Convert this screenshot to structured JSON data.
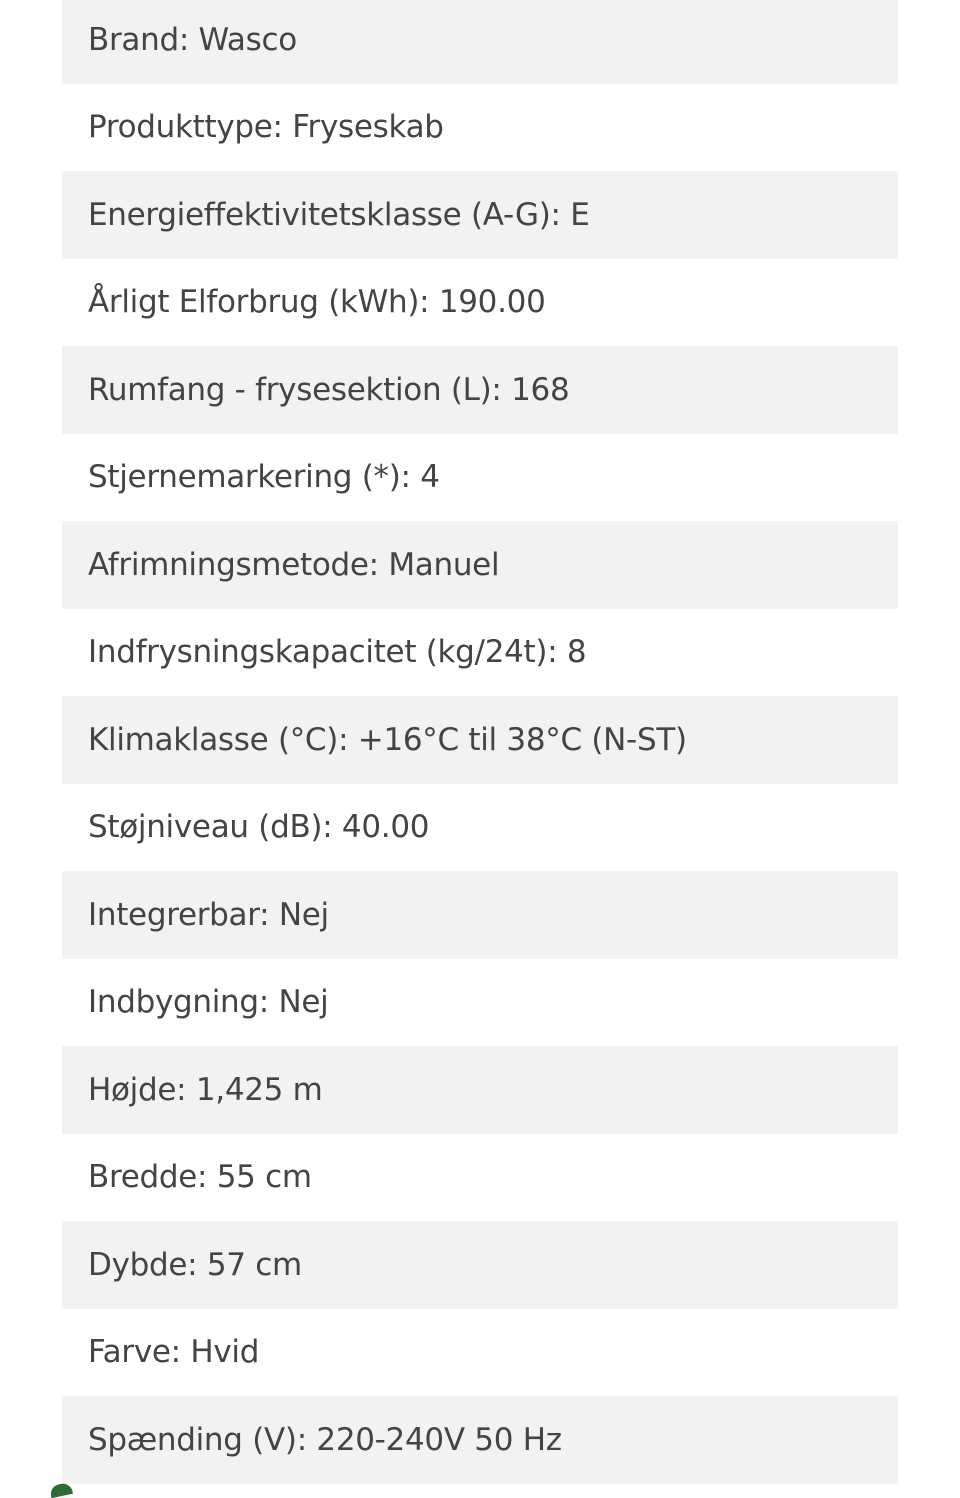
{
  "specs": [
    "Brand: Wasco",
    "Produkttype: Fryseskab",
    "Energieffektivitetsklasse (A-G): E",
    "Årligt Elforbrug (kWh): 190.00",
    "Rumfang - frysesektion (L): 168",
    "Stjernemarkering (*): 4",
    "Afrimningsmetode: Manuel",
    "Indfrysningskapacitet (kg/24t): 8",
    "Klimaklasse (°C): +16°C til 38°C (N-ST)",
    "Støjniveau (dB): 40.00",
    "Integrerbar: Nej",
    "Indbygning: Nej",
    "Højde: 1,425 m",
    "Bredde: 55 cm",
    "Dybde: 57 cm",
    "Farve: Hvid",
    "Spænding (V): 220-240V 50 Hz"
  ],
  "colors": {
    "row_shade": "#f2f2f2",
    "text": "#444444",
    "accent": "#2e6b35"
  }
}
